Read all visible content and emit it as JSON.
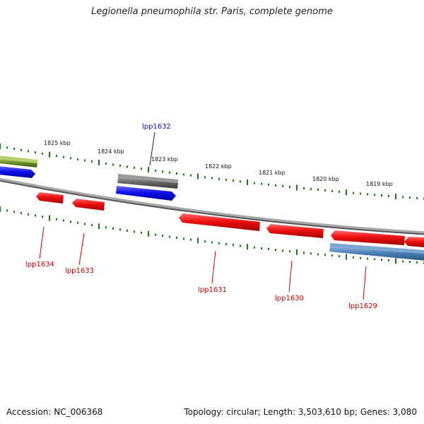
{
  "title": "Legionella pneumophila str. Paris, complete genome",
  "footer": {
    "accession": "Accession: NC_006368",
    "summary": "Topology: circular; Length: 3,503,610 bp; Genes: 3,080"
  },
  "colors": {
    "backbone": "#8a8a8a",
    "tick": "#1a7a1a",
    "gene_forward_blue": "#1010ee",
    "gene_reverse_red": "#ee1010",
    "gene_olive": "#6b8e23",
    "gene_gray": "#666666",
    "gene_steelblue": "#4a7fb5",
    "label_blue": "#1010aa",
    "label_red": "#cc0000"
  },
  "scale_labels": [
    "1825 kbp",
    "1824 kbp",
    "1823 kbp",
    "1822 kbp",
    "1821 kbp",
    "1820 kbp",
    "1819 kbp"
  ],
  "gene_labels": [
    {
      "name": "lpp1632",
      "color": "blue"
    },
    {
      "name": "lpp1634",
      "color": "red"
    },
    {
      "name": "lpp1633",
      "color": "red"
    },
    {
      "name": "lpp1631",
      "color": "red"
    },
    {
      "name": "lpp1630",
      "color": "red"
    },
    {
      "name": "lpp1629",
      "color": "red"
    }
  ]
}
